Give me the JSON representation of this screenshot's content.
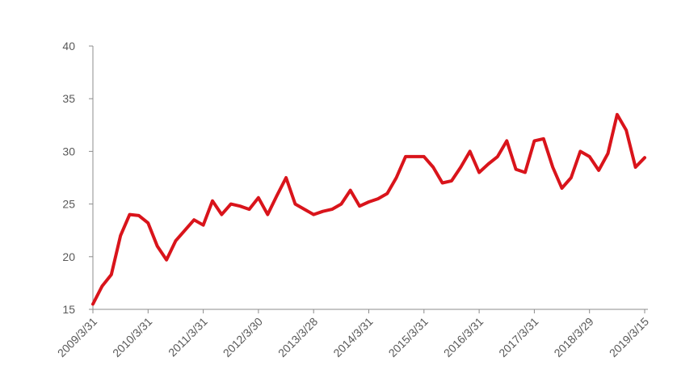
{
  "chart_data": {
    "type": "line",
    "color": "#d9141b",
    "categories": [
      "2009/3/31",
      null,
      null,
      null,
      null,
      null,
      "2010/3/31",
      null,
      null,
      null,
      null,
      null,
      "2011/3/31",
      null,
      null,
      null,
      null,
      null,
      "2012/3/30",
      null,
      null,
      null,
      null,
      null,
      "2013/3/28",
      null,
      null,
      null,
      null,
      null,
      "2014/3/31",
      null,
      null,
      null,
      null,
      null,
      "2015/3/31",
      null,
      null,
      null,
      null,
      null,
      "2016/3/31",
      null,
      null,
      null,
      null,
      null,
      "2017/3/31",
      null,
      null,
      null,
      null,
      null,
      "2018/3/29",
      null,
      null,
      null,
      null,
      null,
      "2019/3/15"
    ],
    "values": [
      15.5,
      17.2,
      18.3,
      22,
      24,
      23.9,
      23.2,
      21,
      19.7,
      21.5,
      22.5,
      23.5,
      23,
      25.3,
      24,
      25,
      24.8,
      24.5,
      25.6,
      24,
      25.8,
      27.5,
      25,
      24.5,
      24,
      24.3,
      24.5,
      25,
      26.3,
      24.8,
      25.2,
      25.5,
      26,
      27.5,
      29.5,
      29.5,
      29.5,
      28.5,
      27,
      27.2,
      28.5,
      30,
      28,
      28.8,
      29.5,
      31,
      28.3,
      28,
      31,
      31.2,
      28.5,
      26.5,
      27.5,
      30,
      29.5,
      28.2,
      29.8,
      33.5,
      32,
      28.5,
      29.4
    ],
    "ylim": [
      15,
      40
    ],
    "yticks": [
      15,
      20,
      25,
      30,
      35,
      40
    ],
    "grid": false
  }
}
